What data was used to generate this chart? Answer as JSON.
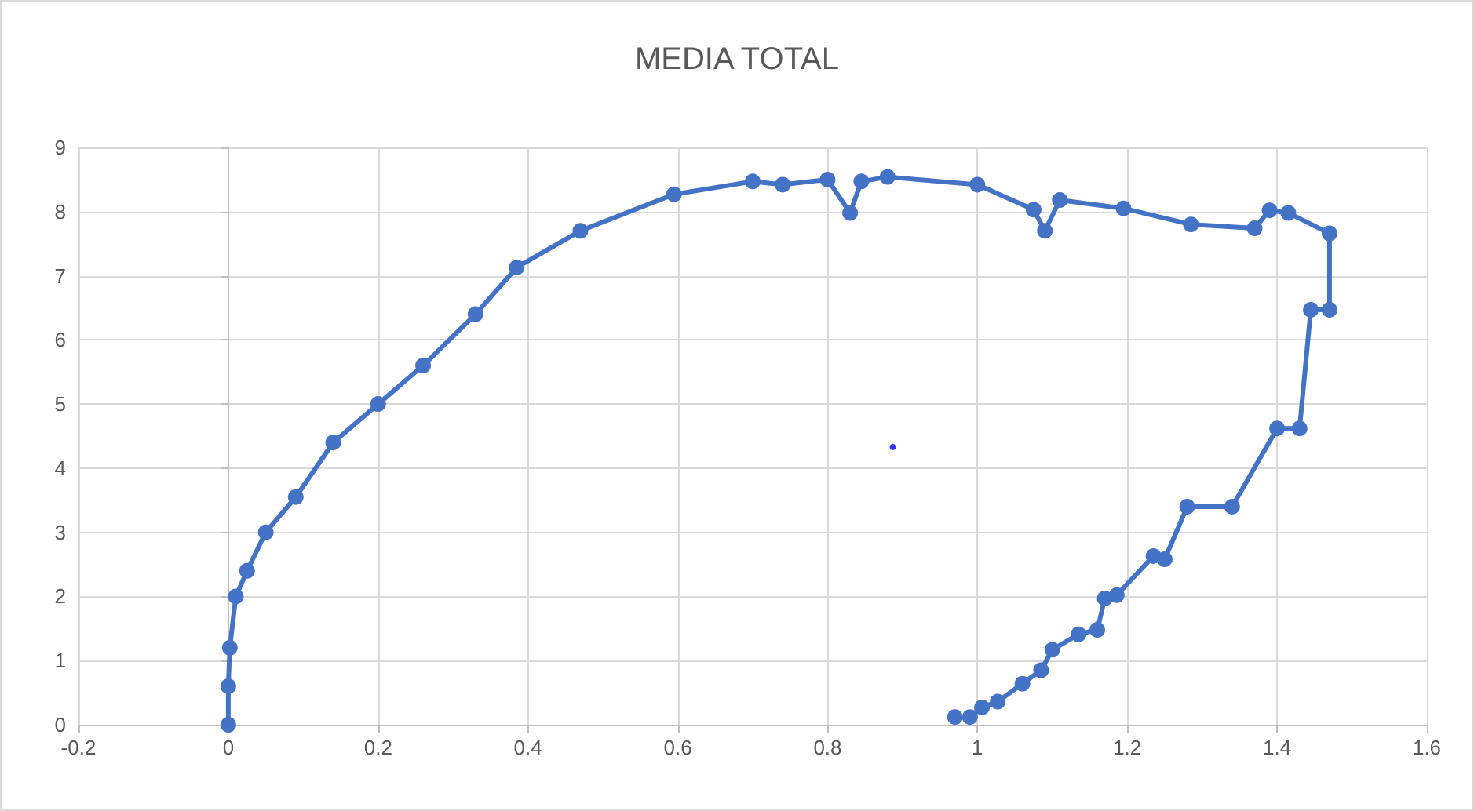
{
  "chart_data": {
    "type": "line",
    "title": "MEDIA TOTAL",
    "series": [
      {
        "color": "#4472c4",
        "marker": "circle",
        "line_style": "solid",
        "x": [
          0,
          0,
          0.002,
          0.01,
          0.025,
          0.05,
          0.09,
          0.14,
          0.2,
          0.26,
          0.33,
          0.385,
          0.47,
          0.595,
          0.7,
          0.74,
          0.8,
          0.83,
          0.845,
          0.88,
          1.0,
          1.075,
          1.09,
          1.11,
          1.195,
          1.285,
          1.37,
          1.39,
          1.415,
          1.47,
          1.47,
          1.445,
          1.43,
          1.4,
          1.34,
          1.28,
          1.25,
          1.235,
          1.186,
          1.17,
          1.16,
          1.135,
          1.1,
          1.085,
          1.06,
          1.027,
          1.006,
          0.99,
          0.97
        ],
        "values": [
          0,
          0.6,
          1.2,
          2.0,
          2.4,
          3.0,
          3.55,
          4.4,
          5.0,
          5.6,
          6.4,
          7.13,
          7.7,
          8.27,
          8.47,
          8.42,
          8.5,
          7.98,
          8.47,
          8.54,
          8.42,
          8.03,
          7.7,
          8.18,
          8.05,
          7.8,
          7.74,
          8.02,
          7.98,
          7.66,
          6.47,
          6.47,
          4.62,
          4.62,
          3.4,
          3.4,
          2.58,
          2.63,
          2.02,
          1.97,
          1.48,
          1.41,
          1.17,
          0.85,
          0.64,
          0.36,
          0.27,
          0.12,
          0.12
        ]
      },
      {
        "type": "scatter",
        "color": "#0000ff",
        "marker": "circle",
        "x": [
          0.887
        ],
        "values": [
          4.33
        ]
      }
    ],
    "xlim": [
      -0.2,
      1.6
    ],
    "xticks": [
      -0.2,
      0,
      0.2,
      0.4,
      0.6,
      0.8,
      1,
      1.2,
      1.4,
      1.6
    ],
    "ylim": [
      0,
      9
    ],
    "yticks": [
      0,
      1,
      2,
      3,
      4,
      5,
      6,
      7,
      8,
      9
    ],
    "grid": true
  }
}
